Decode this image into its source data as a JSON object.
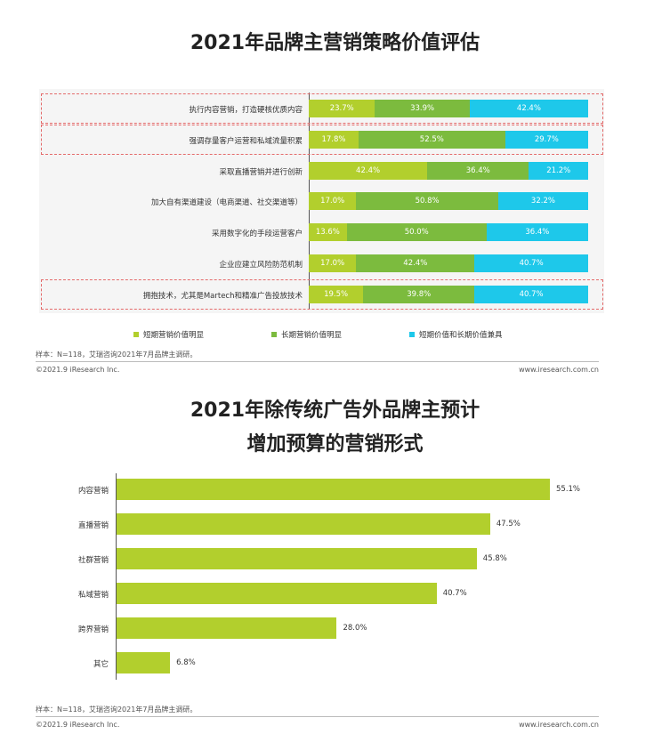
{
  "chart_data": [
    {
      "type": "bar",
      "orientation": "horizontal-stacked-percent",
      "title": "2021年品牌主营销策略价值评估",
      "categories": [
        "执行内容营销，打造硬核优质内容",
        "强调存量客户运营和私域流量积累",
        "采取直播营销并进行创新",
        "加大自有渠道建设（电商渠道、社交渠道等）",
        "采用数字化的手段运营客户",
        "企业应建立风险防范机制",
        "拥抱技术，尤其是Martech和精准广告投放技术"
      ],
      "highlighted": [
        true,
        true,
        false,
        false,
        false,
        false,
        true
      ],
      "series": [
        {
          "name": "短期营销价值明显",
          "color": "#b2cf2d",
          "values": [
            23.7,
            17.8,
            42.4,
            17.0,
            13.6,
            17.0,
            19.5
          ]
        },
        {
          "name": "长期营销价值明显",
          "color": "#7cbb3e",
          "values": [
            33.9,
            52.5,
            36.4,
            50.8,
            50.0,
            42.4,
            39.8
          ]
        },
        {
          "name": "短期价值和长期价值兼具",
          "color": "#1ec8ea",
          "values": [
            42.4,
            29.7,
            21.2,
            32.2,
            36.4,
            40.7,
            40.7
          ]
        }
      ],
      "value_suffix": "%",
      "legend_position": "bottom"
    },
    {
      "type": "bar",
      "orientation": "horizontal",
      "title": [
        "2021年除传统广告外品牌主预计",
        "增加预算的营销形式"
      ],
      "categories": [
        "内容营销",
        "直播营销",
        "社群营销",
        "私域营销",
        "跨界营销",
        "其它"
      ],
      "values": [
        55.1,
        47.5,
        45.8,
        40.7,
        28.0,
        6.8
      ],
      "value_suffix": "%",
      "color": "#b2cf2d"
    }
  ],
  "chart1": {
    "note": "样本：N=118，艾瑞咨询2021年7月品牌主调研。",
    "copyright": "©2021.9 iResearch Inc.",
    "website": "www.iresearch.com.cn"
  },
  "chart2": {
    "note": "样本：N=118，艾瑞咨询2021年7月品牌主调研。",
    "copyright": "©2021.9 iResearch Inc.",
    "website": "www.iresearch.com.cn"
  }
}
